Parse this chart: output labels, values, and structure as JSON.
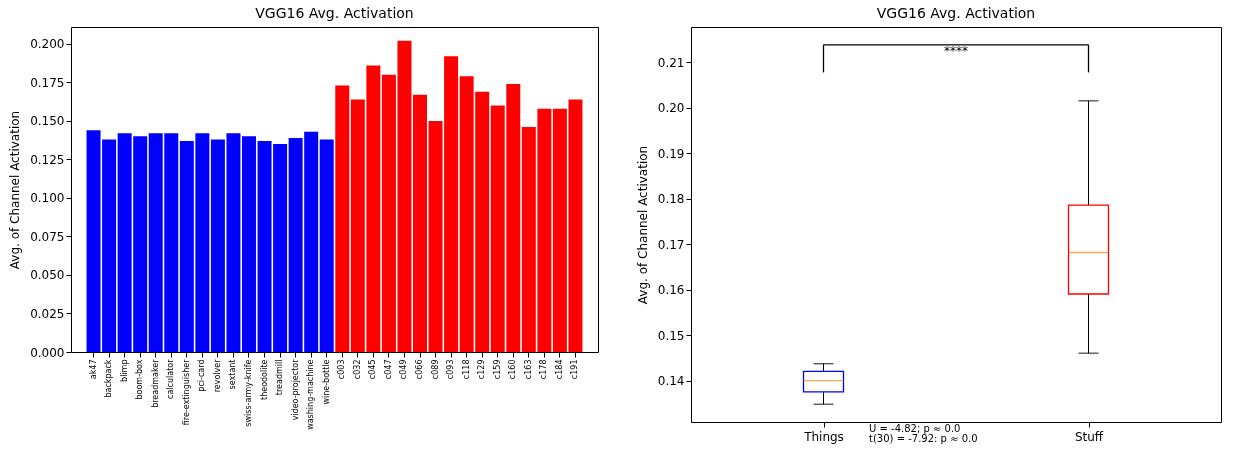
{
  "chart_data": [
    {
      "type": "bar",
      "title": "VGG16 Avg. Activation",
      "ylabel": "Avg. of Channel Activation",
      "categories": [
        "ak47",
        "backpack",
        "blimp",
        "boom-box",
        "breadmaker",
        "calculator",
        "fire-extinguisher",
        "pci-card",
        "revolver",
        "sextant",
        "swiss-army-knife",
        "theodolite",
        "treadmill",
        "video-projector",
        "washing-machine",
        "wine-bottle",
        "c003",
        "c032",
        "c045",
        "c047",
        "c049",
        "c066",
        "c089",
        "c093",
        "c118",
        "c129",
        "c159",
        "c160",
        "c163",
        "c178",
        "c184",
        "c191"
      ],
      "values": [
        0.144,
        0.138,
        0.142,
        0.14,
        0.142,
        0.142,
        0.137,
        0.142,
        0.138,
        0.142,
        0.14,
        0.137,
        0.135,
        0.139,
        0.143,
        0.138,
        0.173,
        0.164,
        0.186,
        0.18,
        0.202,
        0.167,
        0.15,
        0.192,
        0.179,
        0.169,
        0.16,
        0.174,
        0.146,
        0.158,
        0.158,
        0.164
      ],
      "colors": [
        "#0000ff",
        "#0000ff",
        "#0000ff",
        "#0000ff",
        "#0000ff",
        "#0000ff",
        "#0000ff",
        "#0000ff",
        "#0000ff",
        "#0000ff",
        "#0000ff",
        "#0000ff",
        "#0000ff",
        "#0000ff",
        "#0000ff",
        "#0000ff",
        "#ff0000",
        "#ff0000",
        "#ff0000",
        "#ff0000",
        "#ff0000",
        "#ff0000",
        "#ff0000",
        "#ff0000",
        "#ff0000",
        "#ff0000",
        "#ff0000",
        "#ff0000",
        "#ff0000",
        "#ff0000",
        "#ff0000",
        "#ff0000"
      ],
      "ylim": [
        0,
        0.211
      ],
      "yticks": [
        {
          "value": 0,
          "label": "0.000"
        },
        {
          "value": 0.025,
          "label": "0.025"
        },
        {
          "value": 0.05,
          "label": "0.050"
        },
        {
          "value": 0.075,
          "label": "0.075"
        },
        {
          "value": 0.1,
          "label": "0.100"
        },
        {
          "value": 0.125,
          "label": "0.125"
        },
        {
          "value": 0.15,
          "label": "0.150"
        },
        {
          "value": 0.175,
          "label": "0.175"
        },
        {
          "value": 0.2,
          "label": "0.200"
        }
      ],
      "grid": false
    },
    {
      "type": "box",
      "title": "VGG16 Avg. Activation",
      "ylabel": "Avg. of Channel Activation",
      "categories": [
        "Things",
        "Stuff"
      ],
      "boxes": [
        {
          "low": 0.1349,
          "q1": 0.1376,
          "median": 0.1401,
          "q3": 0.1421,
          "high": 0.1438
        },
        {
          "low": 0.1461,
          "q1": 0.1591,
          "median": 0.1682,
          "q3": 0.1786,
          "high": 0.2015
        }
      ],
      "colors": [
        "#0000ff",
        "#ff0000"
      ],
      "ylim": [
        0.131,
        0.2177
      ],
      "yticks": [
        0.14,
        0.15,
        0.16,
        0.17,
        0.18,
        0.19,
        {
          "value": 0.2,
          "label": "0.20"
        },
        0.21
      ],
      "annotations": [
        "****",
        "U = -4.82; p ≈ 0.0",
        "t(30) = -7.92: p ≈ 0.0"
      ],
      "grid": false
    }
  ]
}
